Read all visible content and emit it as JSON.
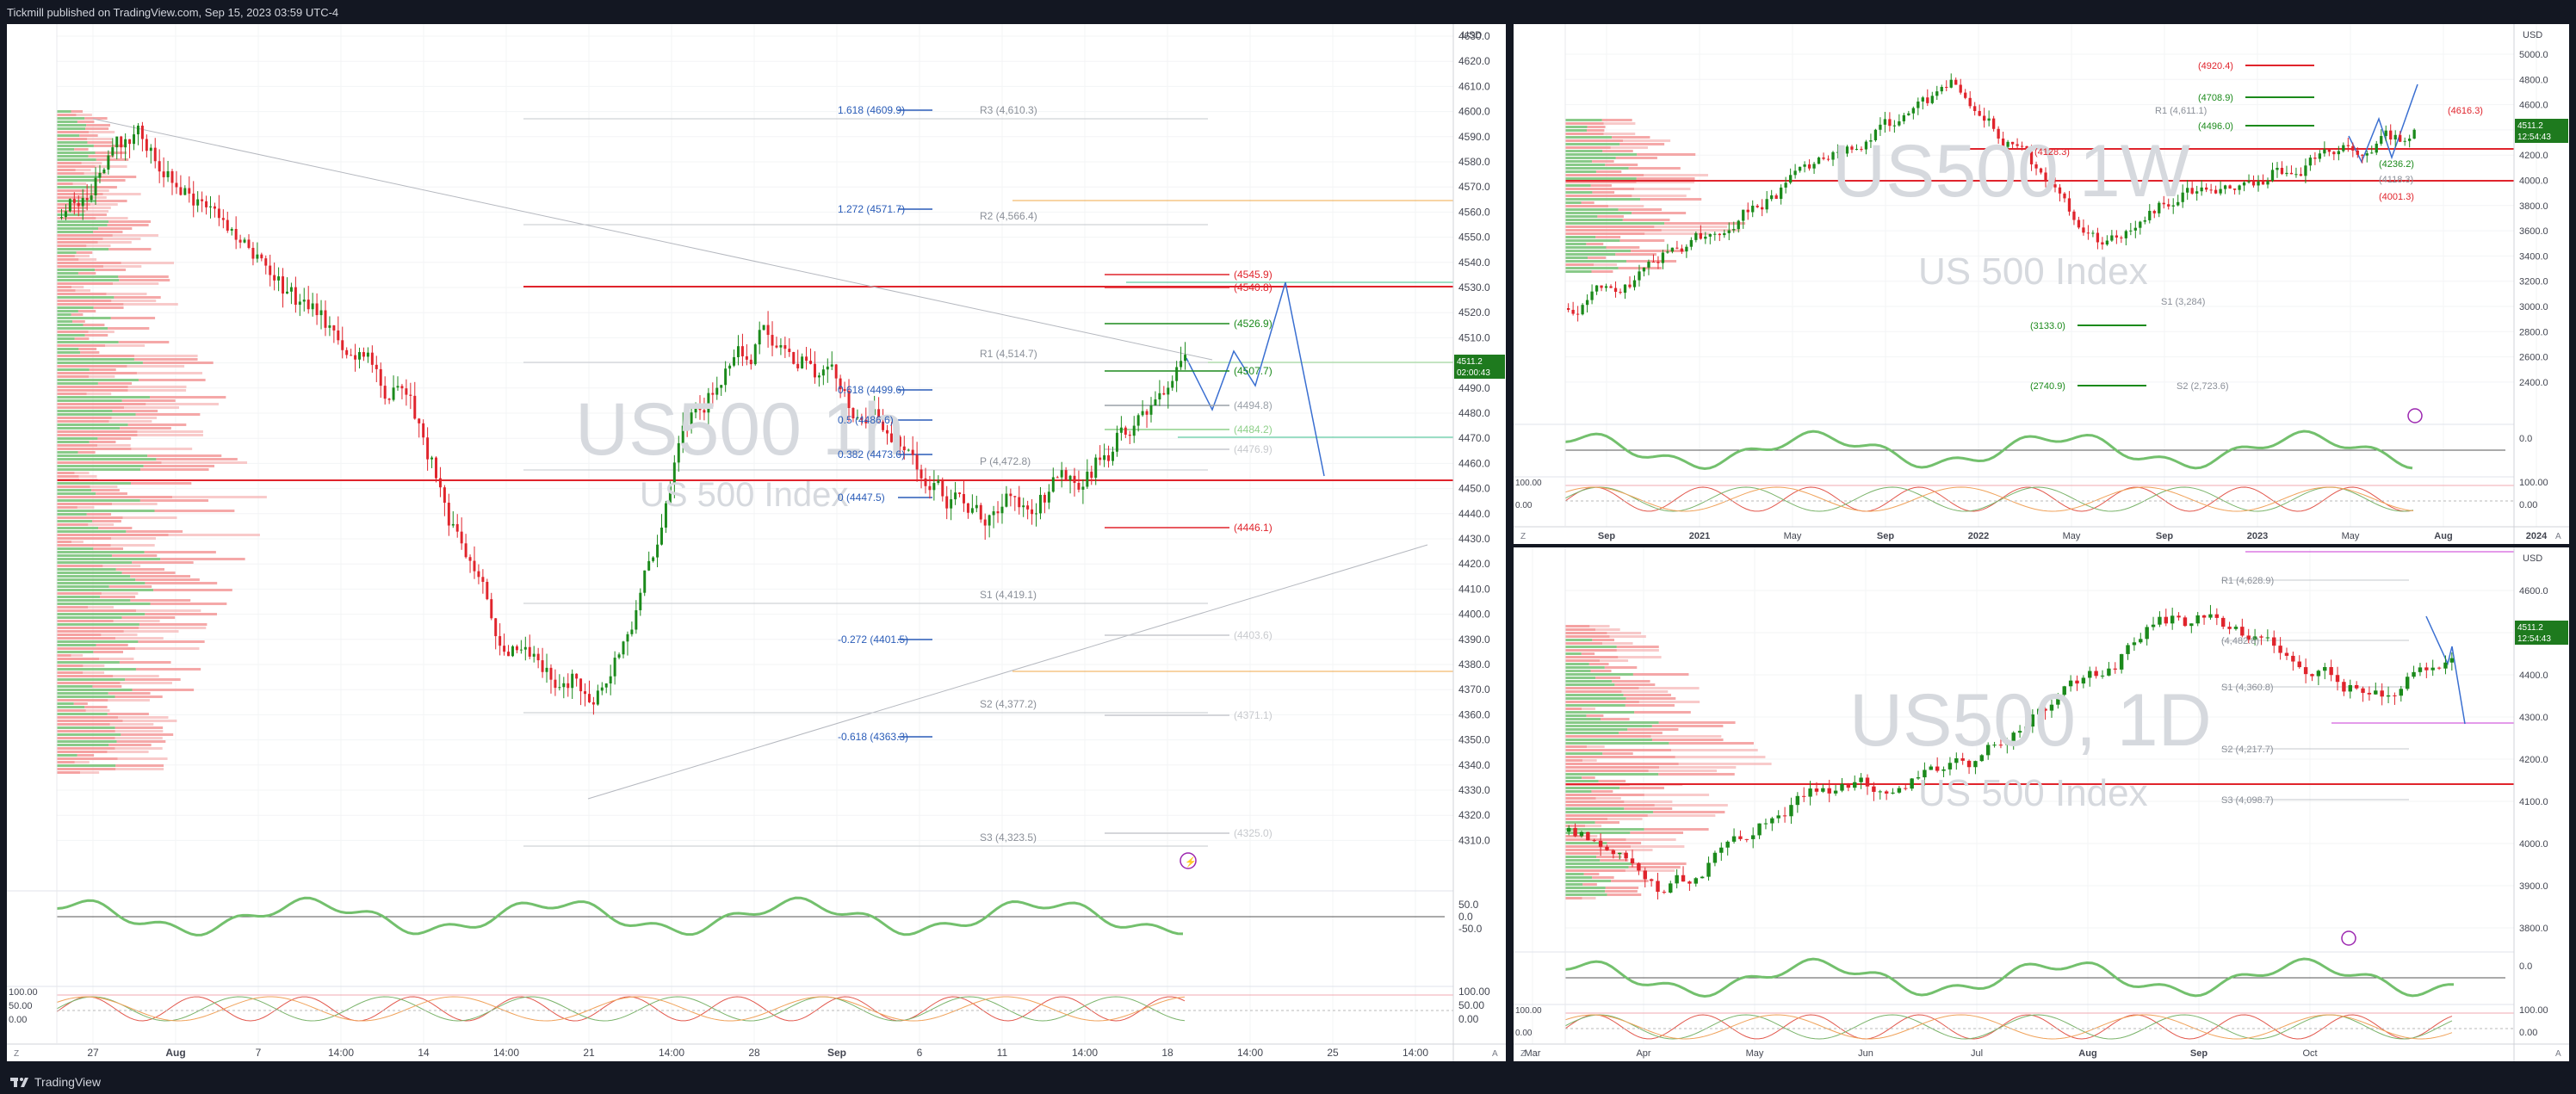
{
  "header": {
    "published": "Tickmill published on TradingView.com, Sep 15, 2023 03:59 UTC-4"
  },
  "footer": {
    "brand": "TradingView"
  },
  "colors": {
    "up": "#1b8a1b",
    "down": "#e0242c",
    "fib": "#2a5cb8",
    "pivot": "#8a8f98",
    "vol_up": "#6bbd6b",
    "vol_down": "#f28b8b",
    "price_label": "#1e7a1e"
  },
  "main": {
    "symbol": "US500",
    "timeframe": "1h",
    "description": "US 500 Index",
    "currency": "USD",
    "price_tag": "4511.2",
    "countdown": "02:00:43",
    "price_axis": [
      "4630.0",
      "4620.0",
      "4610.0",
      "4600.0",
      "4590.0",
      "4580.0",
      "4570.0",
      "4560.0",
      "4550.0",
      "4540.0",
      "4530.0",
      "4520.0",
      "4510.0",
      "4500.0",
      "4490.0",
      "4480.0",
      "4470.0",
      "4460.0",
      "4450.0",
      "4440.0",
      "4430.0",
      "4420.0",
      "4410.0",
      "4400.0",
      "4390.0",
      "4380.0",
      "4370.0",
      "4360.0",
      "4350.0",
      "4340.0",
      "4330.0",
      "4320.0",
      "4310.0"
    ],
    "time_axis": [
      "27",
      "Aug",
      "7",
      "14:00",
      "14",
      "14:00",
      "21",
      "14:00",
      "28",
      "Sep",
      "6",
      "11",
      "14:00",
      "18",
      "14:00",
      "25",
      "14:00"
    ],
    "ind1_axis": [
      "50.0",
      "0.0",
      "-50.0"
    ],
    "ind2_axis": [
      "100.00",
      "50.00",
      "0.00"
    ],
    "fib_labels": [
      "1.618 (4609.9)",
      "1.272 (4571.7)",
      "0.618 (4499.6)",
      "0.5 (4486.6)",
      "0.382 (4473.6)",
      "0 (4447.5)",
      "-0.272 (4401.5)",
      "-0.618 (4363.3)"
    ],
    "pivot_labels": [
      "R3 (4,610.3)",
      "R2 (4,566.4)",
      "R1 (4,514.7)",
      "P (4,472.8)",
      "S1 (4,419.1)",
      "S2 (4,377.2)",
      "S3 (4,323.5)"
    ],
    "level_labels": [
      "(4545.9)",
      "(4540.8)",
      "(4526.9)",
      "(4507.7)",
      "(4494.8)",
      "(4484.2)",
      "(4476.9)",
      "(4446.1)",
      "(4403.6)",
      "(4371.1)",
      "(4325.0)"
    ]
  },
  "right_top": {
    "symbol": "US500",
    "timeframe": "1W",
    "description": "US 500 Index",
    "currency": "USD",
    "price_tag": "4511.2",
    "countdown": "12:54:43",
    "price_axis": [
      "5000.0",
      "4800.0",
      "4600.0",
      "4400.0",
      "4200.0",
      "4000.0",
      "3800.0",
      "3600.0",
      "3400.0",
      "3200.0",
      "3000.0",
      "2800.0",
      "2600.0",
      "2400.0"
    ],
    "time_axis": [
      "Sep",
      "2021",
      "May",
      "Sep",
      "2022",
      "May",
      "Sep",
      "2023",
      "May",
      "Aug",
      "2024"
    ],
    "ind1_axis": [
      "0.0"
    ],
    "ind2_axis": [
      "100.00",
      "0.00"
    ],
    "level_labels": [
      "(4920.4)",
      "(4708.9)",
      "R1 (4,611.1)",
      "(4616.3)",
      "(4496.0)",
      "(4236.2)",
      "(4118.3)",
      "(4001.3)",
      "(4128.3)",
      "(3133.0)",
      "(2740.9)",
      "S1 (3,284)",
      "S2 (2,723.6)"
    ]
  },
  "right_bottom": {
    "symbol": "US500",
    "timeframe": "1D",
    "description": "US 500 Index",
    "currency": "USD",
    "price_tag": "4511.2",
    "countdown": "12:54:43",
    "price_axis": [
      "4600.0",
      "4500.0",
      "4400.0",
      "4300.0",
      "4200.0",
      "4100.0",
      "4000.0",
      "3900.0",
      "3800.0"
    ],
    "time_axis": [
      "Mar",
      "Apr",
      "May",
      "Jun",
      "Jul",
      "Aug",
      "Sep",
      "Oct"
    ],
    "ind1_axis": [
      "0.0"
    ],
    "ind2_axis": [
      "100.00",
      "0.00"
    ],
    "level_labels": [
      "R1 (4,628.9)",
      "(4,482.8)",
      "S1 (4,360.8)",
      "S2 (4,217.7)",
      "S3 (4,098.7)"
    ]
  }
}
